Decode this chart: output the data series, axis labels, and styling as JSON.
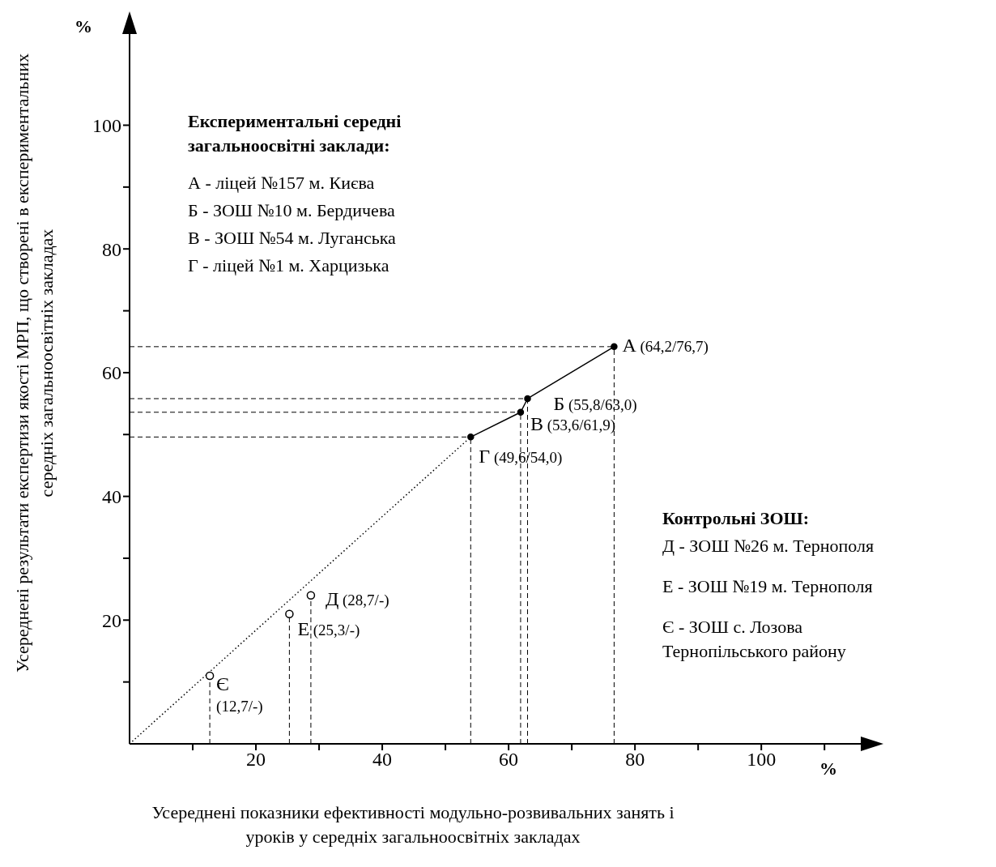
{
  "chart_data": {
    "type": "line",
    "ylabel": "Усереднені результати експертизи якості МРП, що створені в експериментальних середніх загальноосвітніх закладах",
    "xlabel": "Усереднені показники ефективності модульно-розвивальних занять і уроків у середніх загальноосвітніх закладах",
    "xlim": [
      0,
      116
    ],
    "ylim": [
      0,
      115
    ],
    "xticks": [
      {
        "value": 10,
        "label": null
      },
      20,
      {
        "value": 30,
        "label": null
      },
      40,
      {
        "value": 50,
        "label": null
      },
      60,
      {
        "value": 70,
        "label": null
      },
      80,
      {
        "value": 90,
        "label": null
      },
      100,
      {
        "value": 110,
        "label": null
      }
    ],
    "yticks": [
      {
        "value": 10,
        "label": null
      },
      20,
      {
        "value": 30,
        "label": null
      },
      40,
      {
        "value": 50,
        "label": null
      },
      60,
      {
        "value": 70,
        "label": null
      },
      80,
      {
        "value": 90,
        "label": null
      },
      100
    ],
    "series": [
      {
        "x": [
          54.0,
          61.9,
          63.0,
          76.7
        ],
        "values": [
          49.6,
          53.6,
          55.8,
          64.2
        ],
        "color": "#000000",
        "marker": "circle",
        "line_style": "solid"
      },
      {
        "type": "line",
        "x": [
          0,
          54.0
        ],
        "values": [
          0,
          49.6
        ],
        "color": "#000000",
        "marker": "none",
        "line_style": "dotted"
      },
      {
        "type": "scatter",
        "x": [
          12.7,
          25.3,
          28.7
        ],
        "values": [
          11,
          21,
          24
        ],
        "color": "#000000",
        "marker": "circle"
      }
    ],
    "ref_lines": [
      {
        "axis": "x",
        "value": 76.7,
        "line_style": "dashed"
      },
      {
        "axis": "x",
        "value": 63.0,
        "line_style": "dashed"
      },
      {
        "axis": "x",
        "value": 61.9,
        "line_style": "dashed"
      },
      {
        "axis": "x",
        "value": 54.0,
        "line_style": "dashed"
      },
      {
        "axis": "x",
        "value": 28.7,
        "line_style": "dashed"
      },
      {
        "axis": "x",
        "value": 25.3,
        "line_style": "dashed"
      },
      {
        "axis": "x",
        "value": 12.7,
        "line_style": "dashed"
      },
      {
        "axis": "y",
        "value": 64.2,
        "line_style": "dashed"
      },
      {
        "axis": "y",
        "value": 55.8,
        "line_style": "dashed"
      },
      {
        "axis": "y",
        "value": 53.6,
        "line_style": "dashed"
      },
      {
        "axis": "y",
        "value": 49.6,
        "line_style": "dashed"
      }
    ],
    "annotations": [
      {
        "text": "А (64,2/76,7)",
        "x": 76.7,
        "y": 64.2
      },
      {
        "text": "Б (55,8/63,0)",
        "x": 63.0,
        "y": 55.8
      },
      {
        "text": "В (53,6/61,9)",
        "x": 61.9,
        "y": 53.6
      },
      {
        "text": "Г (49,6/54,0)",
        "x": 54.0,
        "y": 49.6
      },
      {
        "text": "Д (28,7/-)",
        "x": 28.7,
        "y": 24
      },
      {
        "text": "Е (25,3/-)",
        "x": 25.3,
        "y": 21
      },
      {
        "text": "Є (12,7/-)",
        "x": 12.7,
        "y": 11
      },
      "Експериментальні середні загальноосвітні заклади:",
      "А - ліцей №157 м. Києва",
      "Б - ЗОШ №10 м. Бердичева",
      "В - ЗОШ №54 м. Луганська",
      "Г - ліцей №1 м. Харцизька",
      "Контрольні ЗОШ:",
      "Д - ЗОШ №26 м. Тернополя",
      "Е - ЗОШ №19 м. Тернополя",
      "Є - ЗОШ с. Лозова Тернопільського району",
      "%",
      "%"
    ]
  }
}
